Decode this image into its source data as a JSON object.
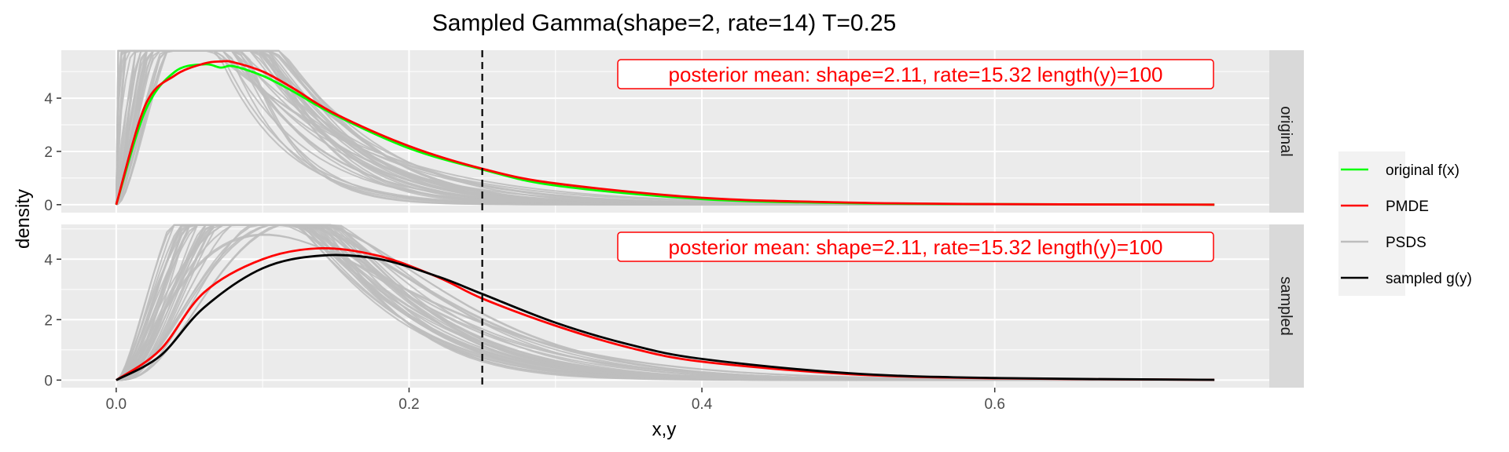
{
  "chart_data": {
    "type": "line",
    "title": "Sampled Gamma(shape=2, rate=14) T=0.25",
    "xlabel": "x,y",
    "ylabel": "density",
    "xlim": [
      -0.0375,
      0.7875
    ],
    "x_ticks": [
      0.0,
      0.2,
      0.4,
      0.6
    ],
    "x_tick_labels": [
      "0.0",
      "0.2",
      "0.4",
      "0.6"
    ],
    "y_ticks": [
      0,
      2,
      4
    ],
    "y_tick_labels": [
      "0",
      "2",
      "4"
    ],
    "grid": true,
    "vline": {
      "x": 0.25,
      "style": "dashed",
      "color": "#000000"
    },
    "facets": [
      {
        "strip": "original",
        "ylim": [
          -0.3,
          5.8
        ],
        "annotation": "posterior mean: shape=2.11, rate=15.32 length(y)=100",
        "series_names": [
          "original f(x)",
          "PMDE"
        ],
        "psds_peak_range": [
          4.6,
          5.8
        ]
      },
      {
        "strip": "sampled",
        "ylim": [
          -0.25,
          5.15
        ],
        "annotation": "posterior mean: shape=2.11, rate=15.32 length(y)=100",
        "series_names": [
          "PMDE",
          "sampled g(y)"
        ],
        "psds_peak_range": [
          3.6,
          4.9
        ]
      }
    ],
    "series": [
      {
        "name": "original f(x)",
        "facet": "original",
        "color": "#00ff00",
        "x": [
          0.0,
          0.02,
          0.04,
          0.06,
          0.0714,
          0.08,
          0.1,
          0.12,
          0.15,
          0.2,
          0.25,
          0.3,
          0.4,
          0.5,
          0.6,
          0.75
        ],
        "y": [
          0.0,
          3.54,
          4.99,
          5.27,
          5.15,
          5.2,
          4.84,
          4.28,
          3.35,
          2.12,
          1.32,
          0.72,
          0.21,
          0.06,
          0.02,
          0.0
        ]
      },
      {
        "name": "PMDE",
        "facet": "original",
        "color": "#ff0000",
        "x": [
          0.0,
          0.02,
          0.04,
          0.06,
          0.072,
          0.08,
          0.1,
          0.12,
          0.15,
          0.2,
          0.25,
          0.3,
          0.4,
          0.5,
          0.6,
          0.75
        ],
        "y": [
          0.0,
          3.75,
          4.85,
          5.3,
          5.38,
          5.35,
          5.0,
          4.4,
          3.4,
          2.2,
          1.35,
          0.8,
          0.26,
          0.08,
          0.02,
          0.0
        ]
      },
      {
        "name": "PMDE",
        "facet": "sampled",
        "color": "#ff0000",
        "x": [
          0.0,
          0.03,
          0.06,
          0.1,
          0.14,
          0.18,
          0.22,
          0.25,
          0.3,
          0.35,
          0.4,
          0.5,
          0.6,
          0.75
        ],
        "y": [
          0.0,
          1.0,
          2.9,
          4.0,
          4.36,
          4.1,
          3.4,
          2.7,
          1.8,
          1.08,
          0.61,
          0.2,
          0.06,
          0.01
        ]
      },
      {
        "name": "sampled g(y)",
        "facet": "sampled",
        "color": "#000000",
        "x": [
          0.0,
          0.03,
          0.06,
          0.1,
          0.14,
          0.18,
          0.22,
          0.25,
          0.3,
          0.35,
          0.4,
          0.5,
          0.6,
          0.75
        ],
        "y": [
          0.0,
          0.8,
          2.4,
          3.7,
          4.12,
          4.0,
          3.42,
          2.85,
          1.9,
          1.18,
          0.7,
          0.23,
          0.07,
          0.01
        ]
      }
    ],
    "psds": {
      "name": "PSDS",
      "color": "#bebebe",
      "count": 40
    },
    "legend": {
      "position": "right",
      "entries": [
        {
          "label": "original f(x)",
          "color": "#00ff00"
        },
        {
          "label": "PMDE",
          "color": "#ff0000"
        },
        {
          "label": "PSDS",
          "color": "#bebebe"
        },
        {
          "label": "sampled g(y)",
          "color": "#000000"
        }
      ]
    }
  }
}
